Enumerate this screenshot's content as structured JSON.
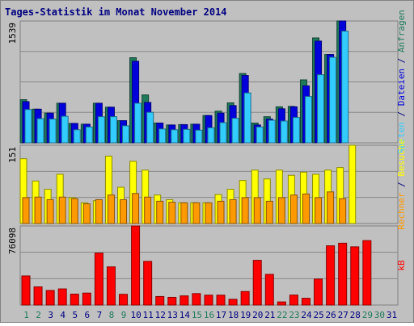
{
  "colors": {
    "background": "#c0c0c0",
    "frame": "#808080",
    "title": "#000080",
    "anfragen": "#1f7a5a",
    "dateien": "#0000dd",
    "seiten": "#33ccff",
    "besuche": "#ffff00",
    "rechner": "#ff9900",
    "kb": "#ff0000",
    "weekend_label": "#1f7a5a",
    "weekday_label": "#000080"
  },
  "chart_data": {
    "type": "bar",
    "title": "Tages-Statistik im Monat November 2014",
    "categories": [
      "1",
      "2",
      "3",
      "4",
      "5",
      "6",
      "7",
      "8",
      "9",
      "10",
      "11",
      "12",
      "13",
      "14",
      "15",
      "16",
      "17",
      "18",
      "19",
      "20",
      "21",
      "22",
      "23",
      "24",
      "25",
      "26",
      "27",
      "28",
      "29",
      "30",
      "31"
    ],
    "weekend_days": [
      "1",
      "2",
      "8",
      "9",
      "15",
      "16",
      "22",
      "23",
      "29",
      "30"
    ],
    "panels": [
      {
        "ylim": [
          0,
          1539
        ],
        "ytick_label": "1539",
        "legend_label": "Seiten / Dateien / Anfragen",
        "series": [
          {
            "name": "Anfragen",
            "values": [
              545,
              425,
              375,
              500,
              245,
              235,
              500,
              450,
              280,
              1075,
              605,
              250,
              225,
              230,
              235,
              345,
              400,
              505,
              875,
              250,
              330,
              455,
              460,
              795,
              1325,
              1115,
              1539,
              0,
              0,
              0,
              0
            ]
          },
          {
            "name": "Dateien",
            "values": [
              520,
              425,
              375,
              500,
              245,
              235,
              500,
              450,
              280,
              1030,
              510,
              250,
              225,
              230,
              235,
              345,
              375,
              470,
              850,
              225,
              300,
              430,
              455,
              720,
              1285,
              1115,
              1539,
              0,
              0,
              0,
              0
            ]
          },
          {
            "name": "Seiten",
            "values": [
              420,
              305,
              300,
              335,
              165,
              200,
              330,
              330,
              215,
              500,
              385,
              175,
              165,
              170,
              160,
              190,
              255,
              310,
              630,
              200,
              285,
              275,
              320,
              585,
              860,
              1080,
              1410,
              0,
              0,
              0,
              0
            ]
          }
        ]
      },
      {
        "ylim": [
          0,
          151
        ],
        "ytick_label": "151",
        "legend_label": "Rechner / Besuche",
        "series": [
          {
            "name": "Besuche",
            "values": [
              125,
              82,
              66,
              95,
              50,
              40,
              44,
              130,
              70,
              120,
              103,
              55,
              46,
              40,
              40,
              40,
              56,
              66,
              83,
              103,
              86,
              103,
              93,
              99,
              95,
              103,
              108,
              151,
              0,
              0,
              0
            ]
          },
          {
            "name": "Rechner",
            "values": [
              50,
              51,
              46,
              51,
              48,
              38,
              46,
              55,
              46,
              58,
              51,
              43,
              41,
              40,
              40,
              40,
              43,
              46,
              50,
              50,
              43,
              50,
              55,
              57,
              50,
              61,
              48,
              0,
              0,
              0,
              0
            ]
          }
        ]
      },
      {
        "ylim": [
          0,
          76098
        ],
        "ytick_label": "76098",
        "legend_label": "kB",
        "series": [
          {
            "name": "kB",
            "values": [
              28000,
              17500,
              14000,
              15500,
              10500,
              11500,
              50000,
              36700,
              10300,
              76098,
              42000,
              8200,
              7400,
              8800,
              11000,
              9500,
              9500,
              5500,
              13000,
              43000,
              29500,
              3000,
              9600,
              6500,
              25000,
              57000,
              59500,
              56000,
              62000,
              0,
              0
            ]
          }
        ]
      }
    ]
  }
}
